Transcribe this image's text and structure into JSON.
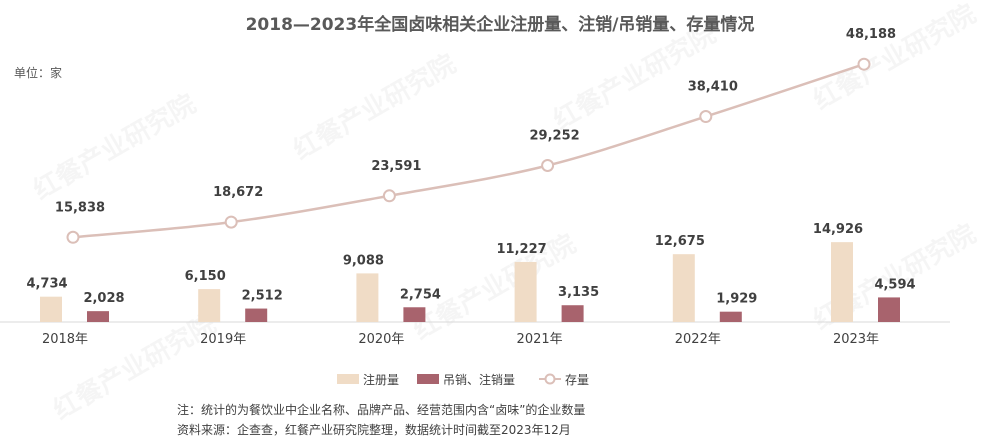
{
  "chart_data": {
    "type": "bar+line",
    "title": "2018—2023年全国卤味相关企业注册量、注销/吊销量、存量情况",
    "unit_label": "单位：家",
    "categories": [
      "2018年",
      "2019年",
      "2020年",
      "2021年",
      "2022年",
      "2023年"
    ],
    "series": [
      {
        "name": "注册量",
        "type": "bar",
        "color": "#f0dcc6",
        "values": [
          4734,
          6150,
          9088,
          11227,
          12675,
          14926
        ],
        "labels": [
          "4,734",
          "6,150",
          "9,088",
          "11,227",
          "12,675",
          "14,926"
        ]
      },
      {
        "name": "吊销、注销量",
        "type": "bar",
        "color": "#a8636d",
        "values": [
          2028,
          2512,
          2754,
          3135,
          1929,
          4594
        ],
        "labels": [
          "2,028",
          "2,512",
          "2,754",
          "3,135",
          "1,929",
          "4,594"
        ]
      },
      {
        "name": "存量",
        "type": "line",
        "color": "#dbbfb8",
        "values": [
          15838,
          18672,
          23591,
          29252,
          38410,
          48188
        ],
        "labels": [
          "15,838",
          "18,672",
          "23,591",
          "29,252",
          "38,410",
          "48,188"
        ]
      }
    ],
    "ylim": [
      0,
      50000
    ],
    "grid": false,
    "legend_position": "bottom",
    "notes": [
      "注：统计的为餐饮业中企业名称、品牌产品、经营范围内含“卤味”的企业数量",
      "资料来源：企查查，红餐产业研究院整理，数据统计时间截至2023年12月"
    ]
  },
  "watermark": "红餐产业研究院"
}
